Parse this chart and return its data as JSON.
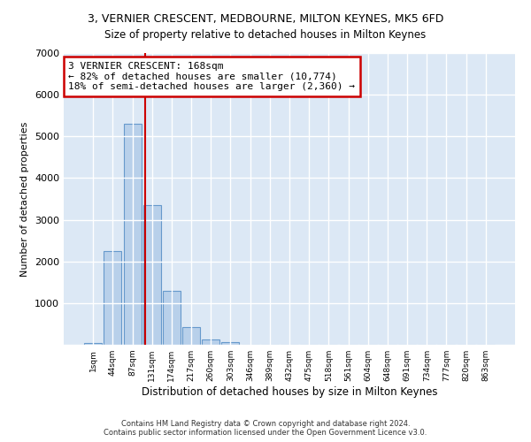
{
  "title1": "3, VERNIER CRESCENT, MEDBOURNE, MILTON KEYNES, MK5 6FD",
  "title2": "Size of property relative to detached houses in Milton Keynes",
  "xlabel": "Distribution of detached houses by size in Milton Keynes",
  "ylabel": "Number of detached properties",
  "categories": [
    "1sqm",
    "44sqm",
    "87sqm",
    "131sqm",
    "174sqm",
    "217sqm",
    "260sqm",
    "303sqm",
    "346sqm",
    "389sqm",
    "432sqm",
    "475sqm",
    "518sqm",
    "561sqm",
    "604sqm",
    "648sqm",
    "691sqm",
    "734sqm",
    "777sqm",
    "820sqm",
    "863sqm"
  ],
  "values": [
    50,
    2250,
    5300,
    3350,
    1300,
    430,
    130,
    70,
    10,
    0,
    0,
    0,
    0,
    0,
    0,
    0,
    0,
    0,
    0,
    0,
    0
  ],
  "bar_color": "#b8d0ea",
  "bar_edge_color": "#6699cc",
  "vline_color": "#cc0000",
  "vline_x_index": 2.65,
  "annotation_text": "3 VERNIER CRESCENT: 168sqm\n← 82% of detached houses are smaller (10,774)\n18% of semi-detached houses are larger (2,360) →",
  "annotation_box_color": "white",
  "annotation_box_edge": "#cc0000",
  "ylim": [
    0,
    7000
  ],
  "yticks": [
    0,
    1000,
    2000,
    3000,
    4000,
    5000,
    6000,
    7000
  ],
  "bg_color": "#dce8f5",
  "grid_color": "#ffffff",
  "footer1": "Contains HM Land Registry data © Crown copyright and database right 2024.",
  "footer2": "Contains public sector information licensed under the Open Government Licence v3.0."
}
